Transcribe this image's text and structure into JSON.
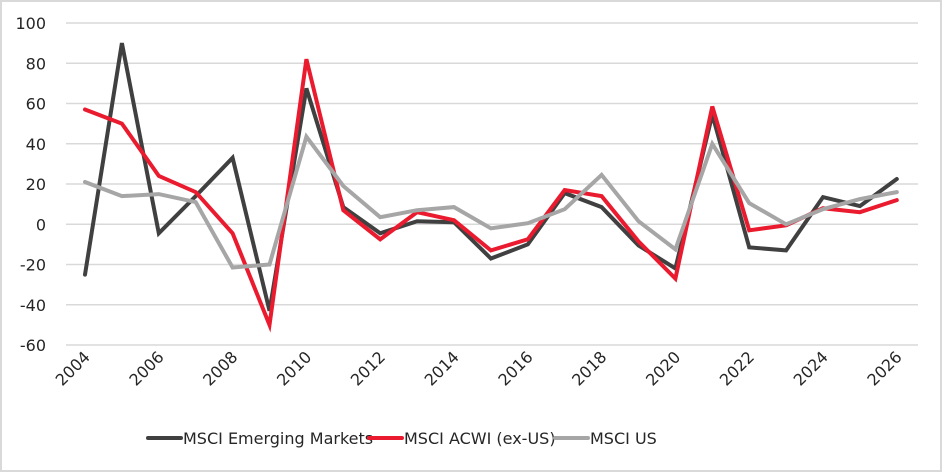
{
  "chart_data": {
    "type": "line",
    "title": "",
    "xlabel": "",
    "ylabel": "",
    "x": [
      2004,
      2005,
      2006,
      2007,
      2008,
      2009,
      2010,
      2011,
      2012,
      2013,
      2014,
      2015,
      2016,
      2017,
      2018,
      2019,
      2020,
      2021,
      2022,
      2023,
      2024,
      2025,
      2026
    ],
    "xtick_labels": [
      "2004",
      "2006",
      "2008",
      "2010",
      "2012",
      "2014",
      "2016",
      "2018",
      "2020",
      "2022",
      "2024",
      "2026"
    ],
    "ylim": [
      -60,
      100
    ],
    "yticks": [
      100,
      80,
      60,
      40,
      20,
      0,
      -20,
      -40,
      -60
    ],
    "ytick_labels": [
      "100",
      "80",
      "60",
      "40",
      "20",
      "0",
      "-20",
      "-40",
      "-60"
    ],
    "grid": true,
    "legend_position": "bottom",
    "series": [
      {
        "name": "MSCI Emerging Markets",
        "color": "#404040",
        "values": [
          -25,
          90,
          -4.5,
          14,
          33,
          -43,
          67.5,
          8.5,
          -4.5,
          1.5,
          1,
          -17,
          -10,
          15.5,
          8.5,
          -10.5,
          -22,
          54.5,
          -11.5,
          -13,
          13.5,
          9,
          22.5
        ]
      },
      {
        "name": "MSCI ACWI (ex-US)",
        "color": "#ea1b2e",
        "values": [
          57,
          50,
          24,
          16,
          -4.5,
          -50,
          82,
          7,
          -7.5,
          6,
          2,
          -13,
          -7.5,
          17,
          14,
          -8.5,
          -27,
          58.5,
          -3,
          -0.5,
          8,
          6,
          12
        ]
      },
      {
        "name": "MSCI US",
        "color": "#a6a6a6",
        "values": [
          21,
          14,
          15,
          11,
          -21.5,
          -20,
          43.5,
          19,
          3.5,
          7,
          8.5,
          -2,
          0.5,
          7.5,
          24.5,
          1.5,
          -12.5,
          40,
          10.5,
          0,
          7.5,
          12.5,
          16
        ]
      }
    ]
  }
}
